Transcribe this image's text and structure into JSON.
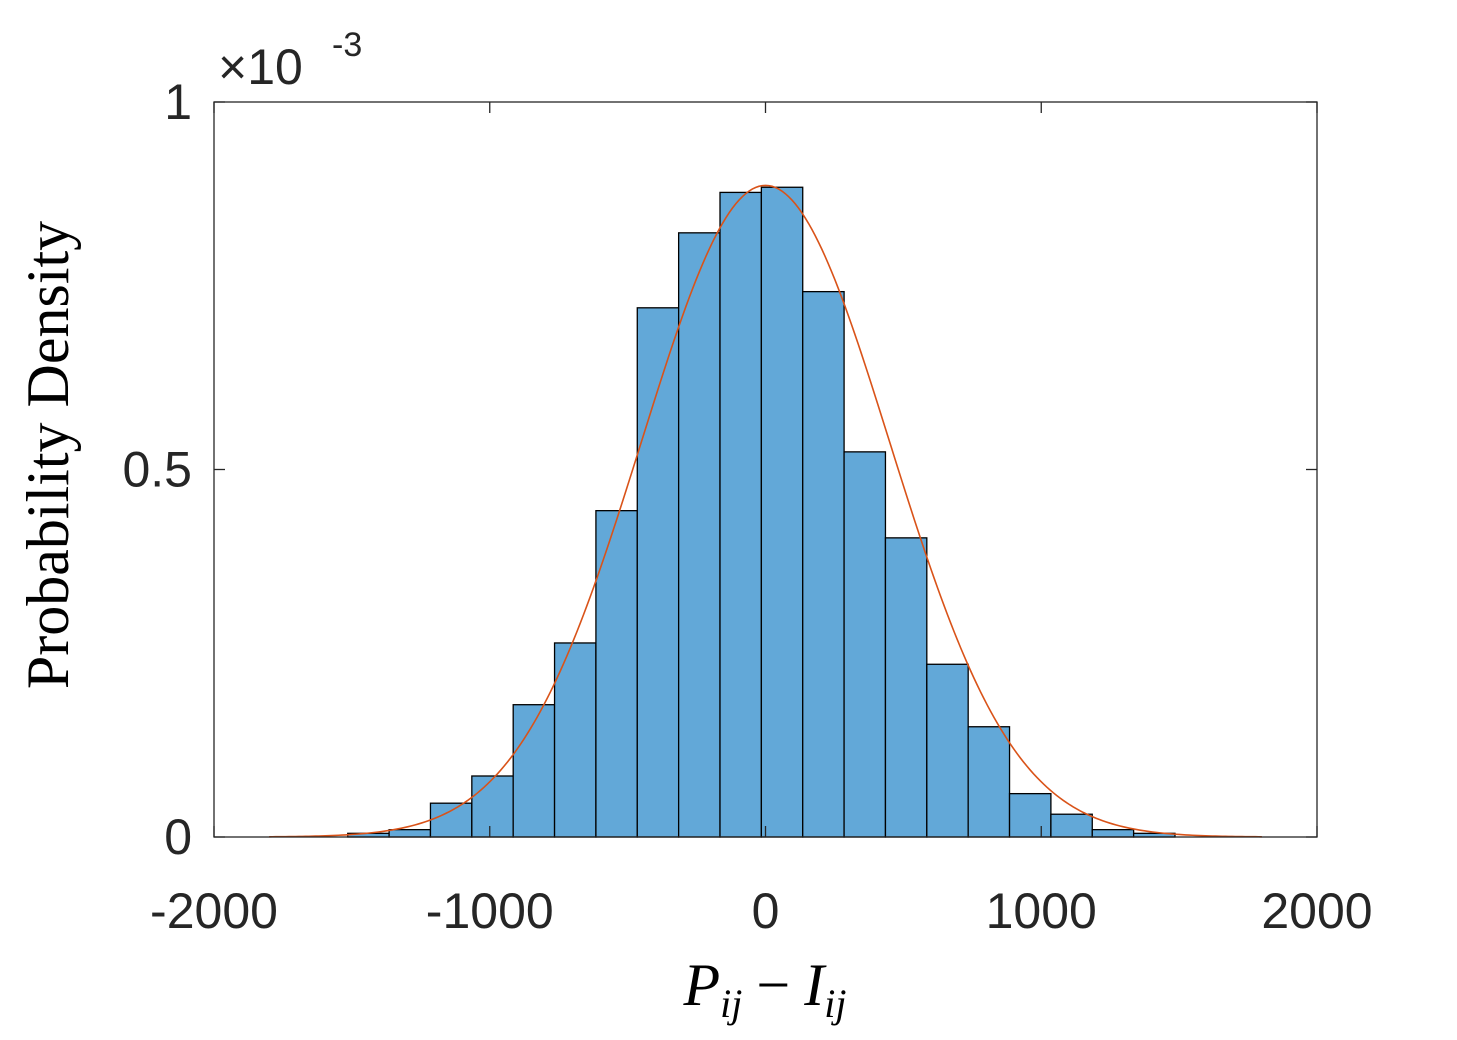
{
  "chart_data": {
    "type": "bar",
    "subtype": "histogram-with-fit",
    "xlabel": {
      "main1": "P",
      "sub1": "ij",
      "op": "−",
      "main2": "I",
      "sub2": "ij"
    },
    "ylabel": "Probability Density",
    "y_exponent": {
      "base": "×10",
      "power": "-3"
    },
    "xlim": [
      -2000,
      2000
    ],
    "ylim": [
      0,
      0.001
    ],
    "x_ticks": [
      -2000,
      -1000,
      0,
      1000,
      2000
    ],
    "x_tick_labels": [
      "-2000",
      "-1000",
      "0",
      "1000",
      "2000"
    ],
    "y_ticks": [
      0,
      0.0005,
      0.001
    ],
    "y_tick_labels": [
      "0",
      "0.5",
      "1"
    ],
    "grid": false,
    "bins": [
      {
        "x0": -1515,
        "x1": -1365,
        "value": 5e-06
      },
      {
        "x0": -1365,
        "x1": -1215,
        "value": 1e-05
      },
      {
        "x0": -1215,
        "x1": -1065,
        "value": 4.6e-05
      },
      {
        "x0": -1065,
        "x1": -915,
        "value": 8.3e-05
      },
      {
        "x0": -915,
        "x1": -765,
        "value": 0.00018
      },
      {
        "x0": -765,
        "x1": -615,
        "value": 0.000264
      },
      {
        "x0": -615,
        "x1": -465,
        "value": 0.000444
      },
      {
        "x0": -465,
        "x1": -315,
        "value": 0.00072
      },
      {
        "x0": -315,
        "x1": -165,
        "value": 0.000822
      },
      {
        "x0": -165,
        "x1": -15,
        "value": 0.000877
      },
      {
        "x0": -15,
        "x1": 135,
        "value": 0.000884
      },
      {
        "x0": 135,
        "x1": 285,
        "value": 0.000742
      },
      {
        "x0": 285,
        "x1": 435,
        "value": 0.000524
      },
      {
        "x0": 435,
        "x1": 585,
        "value": 0.000407
      },
      {
        "x0": 585,
        "x1": 735,
        "value": 0.000235
      },
      {
        "x0": 735,
        "x1": 885,
        "value": 0.00015
      },
      {
        "x0": 885,
        "x1": 1035,
        "value": 5.9e-05
      },
      {
        "x0": 1035,
        "x1": 1185,
        "value": 3.1e-05
      },
      {
        "x0": 1185,
        "x1": 1335,
        "value": 1e-05
      },
      {
        "x0": 1335,
        "x1": 1485,
        "value": 5e-06
      }
    ],
    "fit": {
      "type": "normal",
      "mean": 0,
      "sigma": 450,
      "x_range": [
        -1800,
        1800
      ],
      "color": "#D95319"
    },
    "bar_color": "#62A8D8",
    "bar_edge_color": "#000000"
  }
}
